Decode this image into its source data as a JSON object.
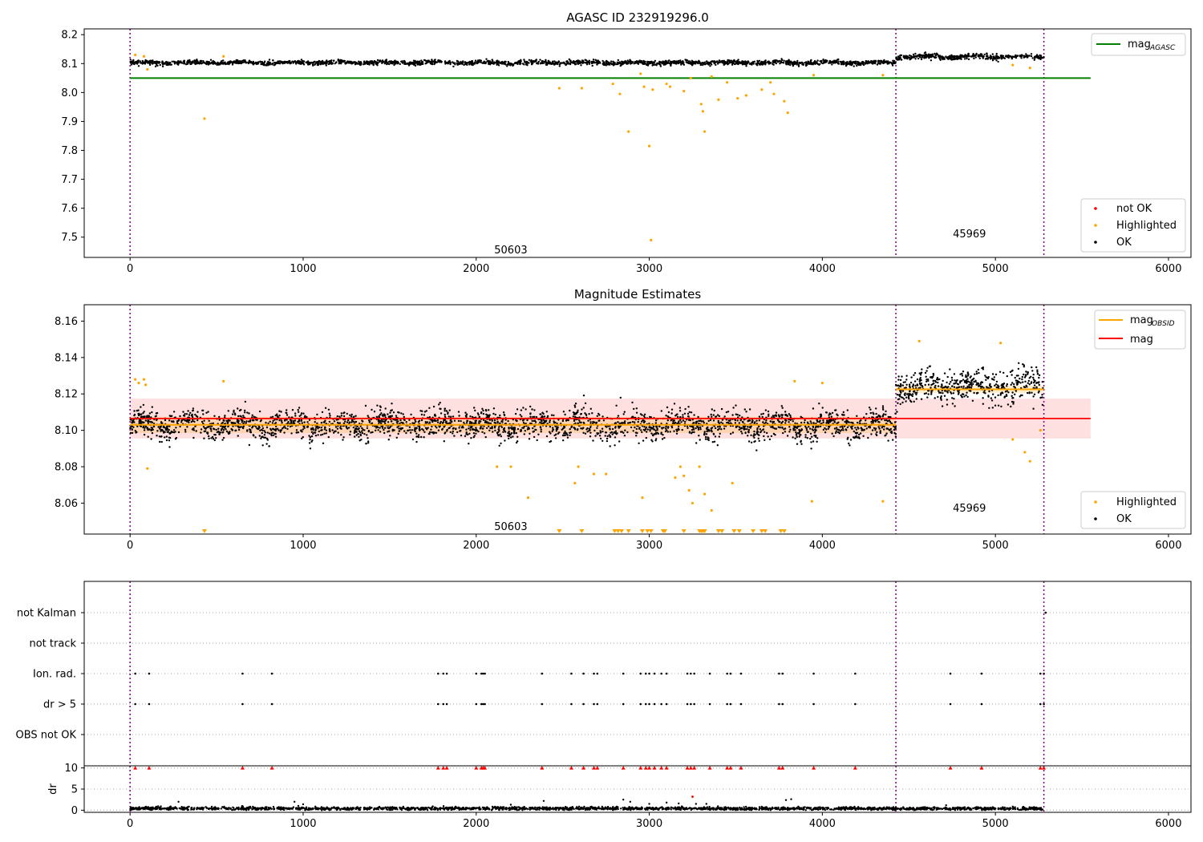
{
  "chart_data": [
    {
      "type": "scatter",
      "title": "AGASC ID 232919296.0",
      "xlim": [
        -265,
        6130
      ],
      "ylim": [
        7.43,
        8.22
      ],
      "xticks": [
        "0",
        "1000",
        "2000",
        "3000",
        "4000",
        "5000",
        "6000"
      ],
      "xtick_values": [
        0,
        1000,
        2000,
        3000,
        4000,
        5000,
        6000
      ],
      "yticks": [
        "7.5",
        "7.6",
        "7.7",
        "7.8",
        "7.9",
        "8.0",
        "8.1",
        "8.2"
      ],
      "ytick_values": [
        7.5,
        7.6,
        7.7,
        7.8,
        7.9,
        8.0,
        8.1,
        8.2
      ],
      "obs_boundaries": [
        0,
        4425,
        5280
      ],
      "obs_labels": [
        {
          "text": "50603",
          "x": 2200,
          "y": 7.455
        },
        {
          "text": "45969",
          "x": 4850,
          "y": 7.51
        }
      ],
      "mag_agasc": {
        "value": 8.05,
        "x_range": [
          0,
          5550
        ]
      },
      "ok_segments": [
        {
          "x_range": [
            0,
            4425
          ],
          "mean": 8.103,
          "spread": 0.007
        },
        {
          "x_range": [
            4425,
            5280
          ],
          "mean": 8.124,
          "spread": 0.008
        }
      ],
      "highlighted": [
        {
          "x": 430,
          "y": 7.91
        },
        {
          "x": 2480,
          "y": 8.015
        },
        {
          "x": 2610,
          "y": 8.015
        },
        {
          "x": 2790,
          "y": 8.03
        },
        {
          "x": 2830,
          "y": 7.995
        },
        {
          "x": 2880,
          "y": 7.865
        },
        {
          "x": 2950,
          "y": 8.065
        },
        {
          "x": 2970,
          "y": 8.02
        },
        {
          "x": 3000,
          "y": 7.815
        },
        {
          "x": 3020,
          "y": 8.01
        },
        {
          "x": 3010,
          "y": 7.49
        },
        {
          "x": 3100,
          "y": 8.03
        },
        {
          "x": 3120,
          "y": 8.02
        },
        {
          "x": 3200,
          "y": 8.005
        },
        {
          "x": 3240,
          "y": 8.05
        },
        {
          "x": 3300,
          "y": 7.96
        },
        {
          "x": 3310,
          "y": 7.935
        },
        {
          "x": 3320,
          "y": 7.865
        },
        {
          "x": 3360,
          "y": 8.055
        },
        {
          "x": 3400,
          "y": 7.975
        },
        {
          "x": 3450,
          "y": 8.035
        },
        {
          "x": 3510,
          "y": 7.98
        },
        {
          "x": 3560,
          "y": 7.99
        },
        {
          "x": 3650,
          "y": 8.01
        },
        {
          "x": 3700,
          "y": 8.035
        },
        {
          "x": 3720,
          "y": 7.995
        },
        {
          "x": 3780,
          "y": 7.97
        },
        {
          "x": 3800,
          "y": 7.93
        },
        {
          "x": 3950,
          "y": 8.06
        },
        {
          "x": 4350,
          "y": 8.06
        },
        {
          "x": 30,
          "y": 8.13
        },
        {
          "x": 80,
          "y": 8.125
        },
        {
          "x": 100,
          "y": 8.08
        },
        {
          "x": 540,
          "y": 8.125
        },
        {
          "x": 5200,
          "y": 8.085
        },
        {
          "x": 5100,
          "y": 8.095
        }
      ],
      "legend_line": {
        "label_main": "mag",
        "label_sub": "AGASC",
        "placement": "top-right"
      },
      "legend_points": [
        {
          "label": "not OK",
          "color": "#ff0000"
        },
        {
          "label": "Highlighted",
          "color": "#ffa500"
        },
        {
          "label": "OK",
          "color": "#000000"
        }
      ]
    },
    {
      "type": "scatter",
      "title": "Magnitude Estimates",
      "xlim": [
        -265,
        6130
      ],
      "ylim": [
        8.043,
        8.169
      ],
      "xticks": [
        "0",
        "1000",
        "2000",
        "3000",
        "4000",
        "5000",
        "6000"
      ],
      "xtick_values": [
        0,
        1000,
        2000,
        3000,
        4000,
        5000,
        6000
      ],
      "yticks": [
        "8.06",
        "8.08",
        "8.10",
        "8.12",
        "8.14",
        "8.16"
      ],
      "ytick_values": [
        8.06,
        8.08,
        8.1,
        8.12,
        8.14,
        8.16
      ],
      "obs_boundaries": [
        0,
        4425,
        5280
      ],
      "obs_labels": [
        {
          "text": "50603",
          "x": 2200,
          "y": 8.047
        },
        {
          "text": "45969",
          "x": 4850,
          "y": 8.057
        }
      ],
      "mag": {
        "value": 8.1065,
        "band": [
          8.0955,
          8.1175
        ],
        "x_range": [
          0,
          5550
        ]
      },
      "mag_obsid": [
        {
          "x_range": [
            0,
            4425
          ],
          "value": 8.103,
          "band": [
            8.0985,
            8.1075
          ]
        },
        {
          "x_range": [
            4425,
            5280
          ],
          "value": 8.1225,
          "band": [
            8.1205,
            8.1245
          ]
        }
      ],
      "ok_segments": [
        {
          "x_range": [
            0,
            4425
          ],
          "mean": 8.103,
          "spread": 0.007
        },
        {
          "x_range": [
            4425,
            5280
          ],
          "mean": 8.124,
          "spread": 0.008
        }
      ],
      "highlighted": [
        {
          "x": 30,
          "y": 8.128
        },
        {
          "x": 80,
          "y": 8.128
        },
        {
          "x": 50,
          "y": 8.126
        },
        {
          "x": 90,
          "y": 8.125
        },
        {
          "x": 100,
          "y": 8.079
        },
        {
          "x": 540,
          "y": 8.127
        },
        {
          "x": 2120,
          "y": 8.08
        },
        {
          "x": 2200,
          "y": 8.08
        },
        {
          "x": 2300,
          "y": 8.063
        },
        {
          "x": 2570,
          "y": 8.071
        },
        {
          "x": 2590,
          "y": 8.08
        },
        {
          "x": 2680,
          "y": 8.076
        },
        {
          "x": 2750,
          "y": 8.076
        },
        {
          "x": 2960,
          "y": 8.063
        },
        {
          "x": 3150,
          "y": 8.074
        },
        {
          "x": 3180,
          "y": 8.08
        },
        {
          "x": 3200,
          "y": 8.075
        },
        {
          "x": 3230,
          "y": 8.067
        },
        {
          "x": 3250,
          "y": 8.06
        },
        {
          "x": 3290,
          "y": 8.08
        },
        {
          "x": 3320,
          "y": 8.065
        },
        {
          "x": 3360,
          "y": 8.056
        },
        {
          "x": 3480,
          "y": 8.071
        },
        {
          "x": 3940,
          "y": 8.061
        },
        {
          "x": 4000,
          "y": 8.126
        },
        {
          "x": 3840,
          "y": 8.127
        },
        {
          "x": 4350,
          "y": 8.061
        },
        {
          "x": 4560,
          "y": 8.149
        },
        {
          "x": 5030,
          "y": 8.148
        },
        {
          "x": 5100,
          "y": 8.095
        },
        {
          "x": 5170,
          "y": 8.088
        },
        {
          "x": 5200,
          "y": 8.083
        },
        {
          "x": 5260,
          "y": 8.1
        }
      ],
      "below_range": [
        430,
        2480,
        2610,
        2800,
        2820,
        2840,
        2880,
        2960,
        2990,
        3010,
        3080,
        3090,
        3200,
        3290,
        3300,
        3310,
        3320,
        3400,
        3420,
        3490,
        3520,
        3600,
        3650,
        3670,
        3760,
        3780
      ],
      "legend_lines": [
        {
          "label_main": "mag",
          "label_sub": "OBSID",
          "color": "#ffa500"
        },
        {
          "label_main": "mag",
          "label_sub": "",
          "color": "#ff0000"
        }
      ],
      "legend_points": [
        {
          "label": "Highlighted",
          "color": "#ffa500"
        },
        {
          "label": "OK",
          "color": "#000000"
        }
      ]
    },
    {
      "type": "scatter",
      "title": "",
      "xlim": [
        -265,
        6130
      ],
      "flag_rows": [
        "not Kalman",
        "not track",
        "Ion. rad.",
        "dr > 5",
        "OBS not OK"
      ],
      "flag_events": {
        "Ion. rad.": [
          30,
          110,
          650,
          820,
          1780,
          1810,
          1830,
          2000,
          2030,
          2040,
          2050,
          2380,
          2550,
          2620,
          2680,
          2700,
          2850,
          2950,
          2980,
          3000,
          3030,
          3070,
          3100,
          3220,
          3240,
          3260,
          3350,
          3450,
          3470,
          3530,
          3750,
          3770,
          3950,
          4190,
          4740,
          4920,
          5260,
          5280
        ],
        "dr > 5": [
          30,
          110,
          650,
          820,
          1780,
          1810,
          1830,
          2000,
          2030,
          2040,
          2050,
          2380,
          2550,
          2620,
          2680,
          2700,
          2850,
          2950,
          2980,
          3000,
          3030,
          3070,
          3100,
          3220,
          3240,
          3260,
          3350,
          3450,
          3470,
          3530,
          3750,
          3770,
          3950,
          4190,
          4740,
          4920,
          5260,
          5280
        ],
        "not Kalman": [
          5290
        ]
      },
      "obs_boundaries": [
        0,
        4425,
        5280
      ]
    },
    {
      "type": "scatter",
      "title": "",
      "ylabel": "dr",
      "xlim": [
        -265,
        6130
      ],
      "ylim": [
        -0.5,
        10.5
      ],
      "xticks": [
        "0",
        "1000",
        "2000",
        "3000",
        "4000",
        "5000",
        "6000"
      ],
      "xtick_values": [
        0,
        1000,
        2000,
        3000,
        4000,
        5000,
        6000
      ],
      "yticks": [
        "0",
        "5",
        "10"
      ],
      "ytick_values": [
        0,
        5,
        10
      ],
      "obs_boundaries": [
        0,
        4425,
        5280
      ],
      "dr_ok": {
        "x_range": [
          0,
          5280
        ],
        "mean": 0.4,
        "spread": 0.3
      },
      "dr_outliers": [
        {
          "x": 280,
          "y": 2.0
        },
        {
          "x": 950,
          "y": 2.0
        },
        {
          "x": 1000,
          "y": 1.4
        },
        {
          "x": 2200,
          "y": 1.3
        },
        {
          "x": 2390,
          "y": 2.2
        },
        {
          "x": 2850,
          "y": 2.5
        },
        {
          "x": 2890,
          "y": 2.0
        },
        {
          "x": 3000,
          "y": 1.5
        },
        {
          "x": 3100,
          "y": 1.8
        },
        {
          "x": 3170,
          "y": 1.6
        },
        {
          "x": 3250,
          "y": 3.2
        },
        {
          "x": 3270,
          "y": 1.5
        },
        {
          "x": 3330,
          "y": 1.5
        },
        {
          "x": 3790,
          "y": 2.4
        },
        {
          "x": 3820,
          "y": 2.6
        }
      ],
      "not_ok_markers": [
        30,
        110,
        650,
        820,
        1780,
        1810,
        1830,
        2000,
        2030,
        2040,
        2050,
        2380,
        2550,
        2620,
        2680,
        2700,
        2850,
        2950,
        2980,
        3000,
        3030,
        3070,
        3100,
        3220,
        3240,
        3260,
        3350,
        3450,
        3470,
        3530,
        3750,
        3770,
        3950,
        4190,
        4740,
        4920,
        5260,
        5280
      ],
      "not_ok_value": 10
    }
  ]
}
